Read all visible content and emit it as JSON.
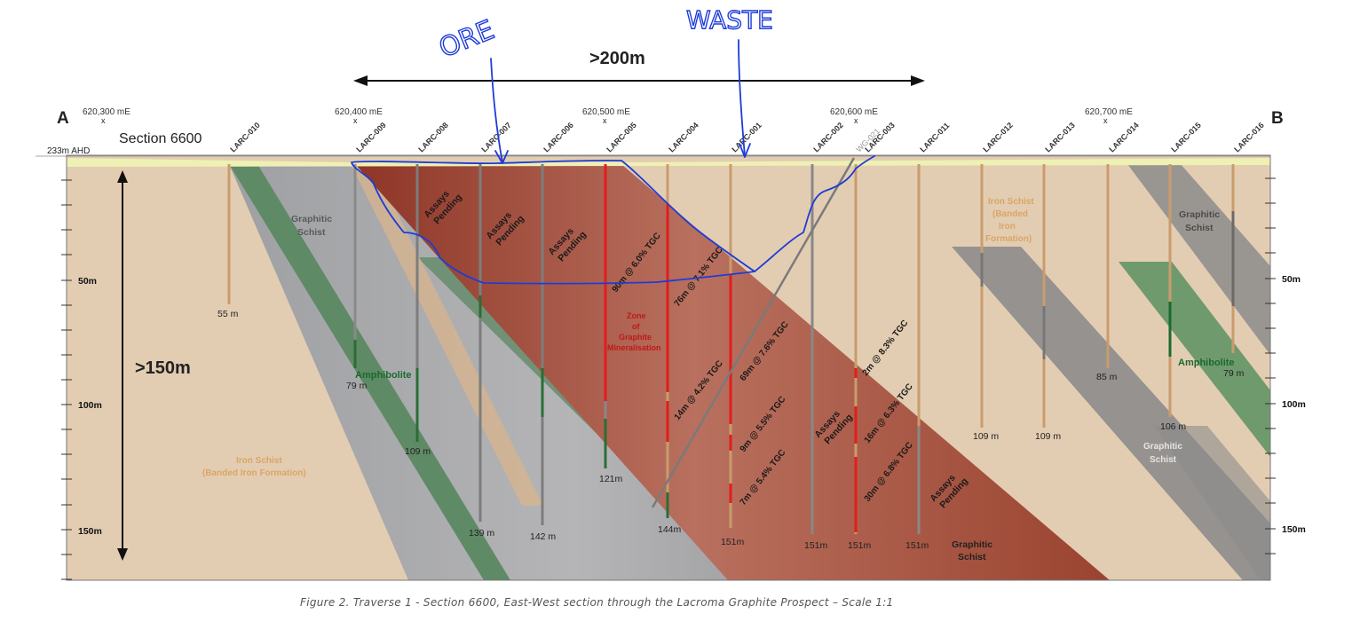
{
  "section": {
    "end_left": "A",
    "end_right": "B",
    "name": "Section 6600",
    "surface_label": "233m AHD",
    "coordinates": [
      "620,300 mE",
      "620,400 mE",
      "620,500 mE",
      "620,600 mE",
      "620,700 mE"
    ],
    "width_annotation": ">200m",
    "depth_annotation": ">150m",
    "depth_ticks": [
      "50m",
      "100m",
      "150m"
    ],
    "holes": [
      {
        "id": "LARC-010",
        "depth": "55 m"
      },
      {
        "id": "LARC-009",
        "depth": "79 m"
      },
      {
        "id": "LARC-008",
        "depth": "109 m"
      },
      {
        "id": "LARC-007",
        "depth": "139 m"
      },
      {
        "id": "LARC-006",
        "depth": "142 m"
      },
      {
        "id": "LARC-005",
        "depth": "121m"
      },
      {
        "id": "LARC-004",
        "depth": "144m"
      },
      {
        "id": "LARC-001",
        "depth": "151m"
      },
      {
        "id": "LARC-002",
        "depth": "151m"
      },
      {
        "id": "WG-021",
        "depth": ""
      },
      {
        "id": "LARC-003",
        "depth": "151m"
      },
      {
        "id": "LARC-011",
        "depth": "151m"
      },
      {
        "id": "LARC-012",
        "depth": "109 m"
      },
      {
        "id": "LARC-013",
        "depth": "109 m"
      },
      {
        "id": "LARC-014",
        "depth": "85 m"
      },
      {
        "id": "LARC-015",
        "depth": "106 m"
      },
      {
        "id": "LARC-016",
        "depth": "79 m"
      }
    ],
    "intervals": [
      "90m @ 6.0% TGC",
      "76m @ 7.1% TGC",
      "14m @ 4.2% TGC",
      "69m @ 7.6% TGC",
      "9m @ 5.5% TGC",
      "7m @ 5.4% TGC",
      "2m @ 8.3% TGC",
      "16m @ 6.3% TGC",
      "30m @ 6.8% TGC"
    ],
    "pending": "Assays Pending",
    "units": {
      "graphitic_schist_line1": "Graphitic",
      "graphitic_schist_line2": "Schist",
      "iron_schist": "Iron Schist",
      "iron_schist_sub": "(Banded Iron Formation)",
      "iron_schist_right": [
        "Iron Schist",
        "(Banded",
        "Iron",
        "Formation)"
      ],
      "amphibolite": "Amphibolite",
      "zone": [
        "Zone",
        "of",
        "Graphite",
        "Mineralisation"
      ]
    }
  },
  "handwriting": {
    "ore": "ORE",
    "waste": "WASTE"
  },
  "caption": "Figure 2.  Traverse 1 - Section 6600, East-West section through the Lacroma Graphite Prospect – Scale 1:1",
  "colors": {
    "background_rock": "#e3cdb2",
    "graphitic_schist": "#a6a6a8",
    "amphibolite": "#5f8a66",
    "mineralisation": "#a9533f",
    "surface_soil": "#eef0b4",
    "annotation_ink": "#1e3cd6",
    "assay_red": "#e21d1d",
    "drill_tan": "#c99c6e"
  }
}
